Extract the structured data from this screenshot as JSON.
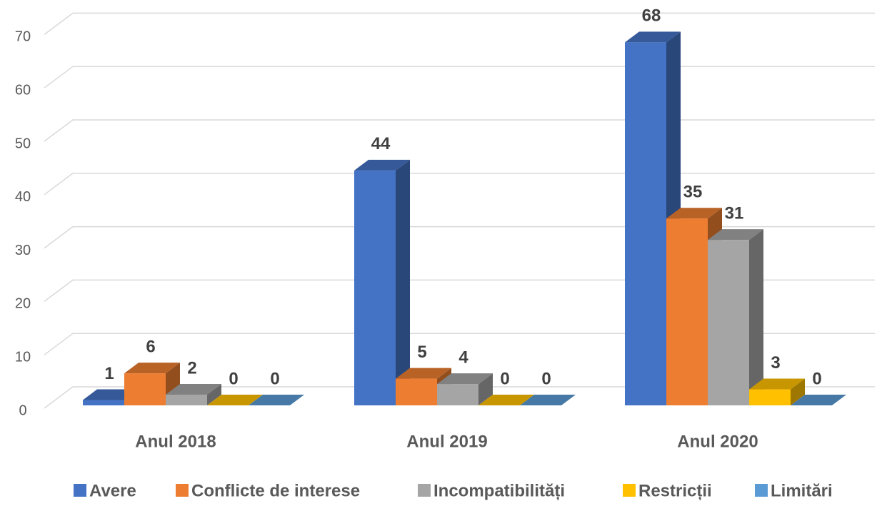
{
  "chart_data": {
    "type": "bar",
    "categories": [
      "Anul 2018",
      "Anul 2019",
      "Anul 2020"
    ],
    "series": [
      {
        "name": "Avere",
        "color": "#4472c4",
        "values": [
          1,
          44,
          68
        ]
      },
      {
        "name": "Conflicte de interese",
        "color": "#ed7d31",
        "values": [
          6,
          5,
          35
        ]
      },
      {
        "name": "Incompatibilități",
        "color": "#a5a5a5",
        "values": [
          2,
          4,
          31
        ]
      },
      {
        "name": "Restricții",
        "color": "#ffc000",
        "values": [
          0,
          0,
          3
        ]
      },
      {
        "name": "Limitări",
        "color": "#5b9bd5",
        "values": [
          0,
          0,
          0
        ]
      }
    ],
    "ylim": [
      0,
      70
    ],
    "yticks": [
      0,
      10,
      20,
      30,
      40,
      50,
      60,
      70
    ],
    "grid": true,
    "legend": "bottom"
  }
}
